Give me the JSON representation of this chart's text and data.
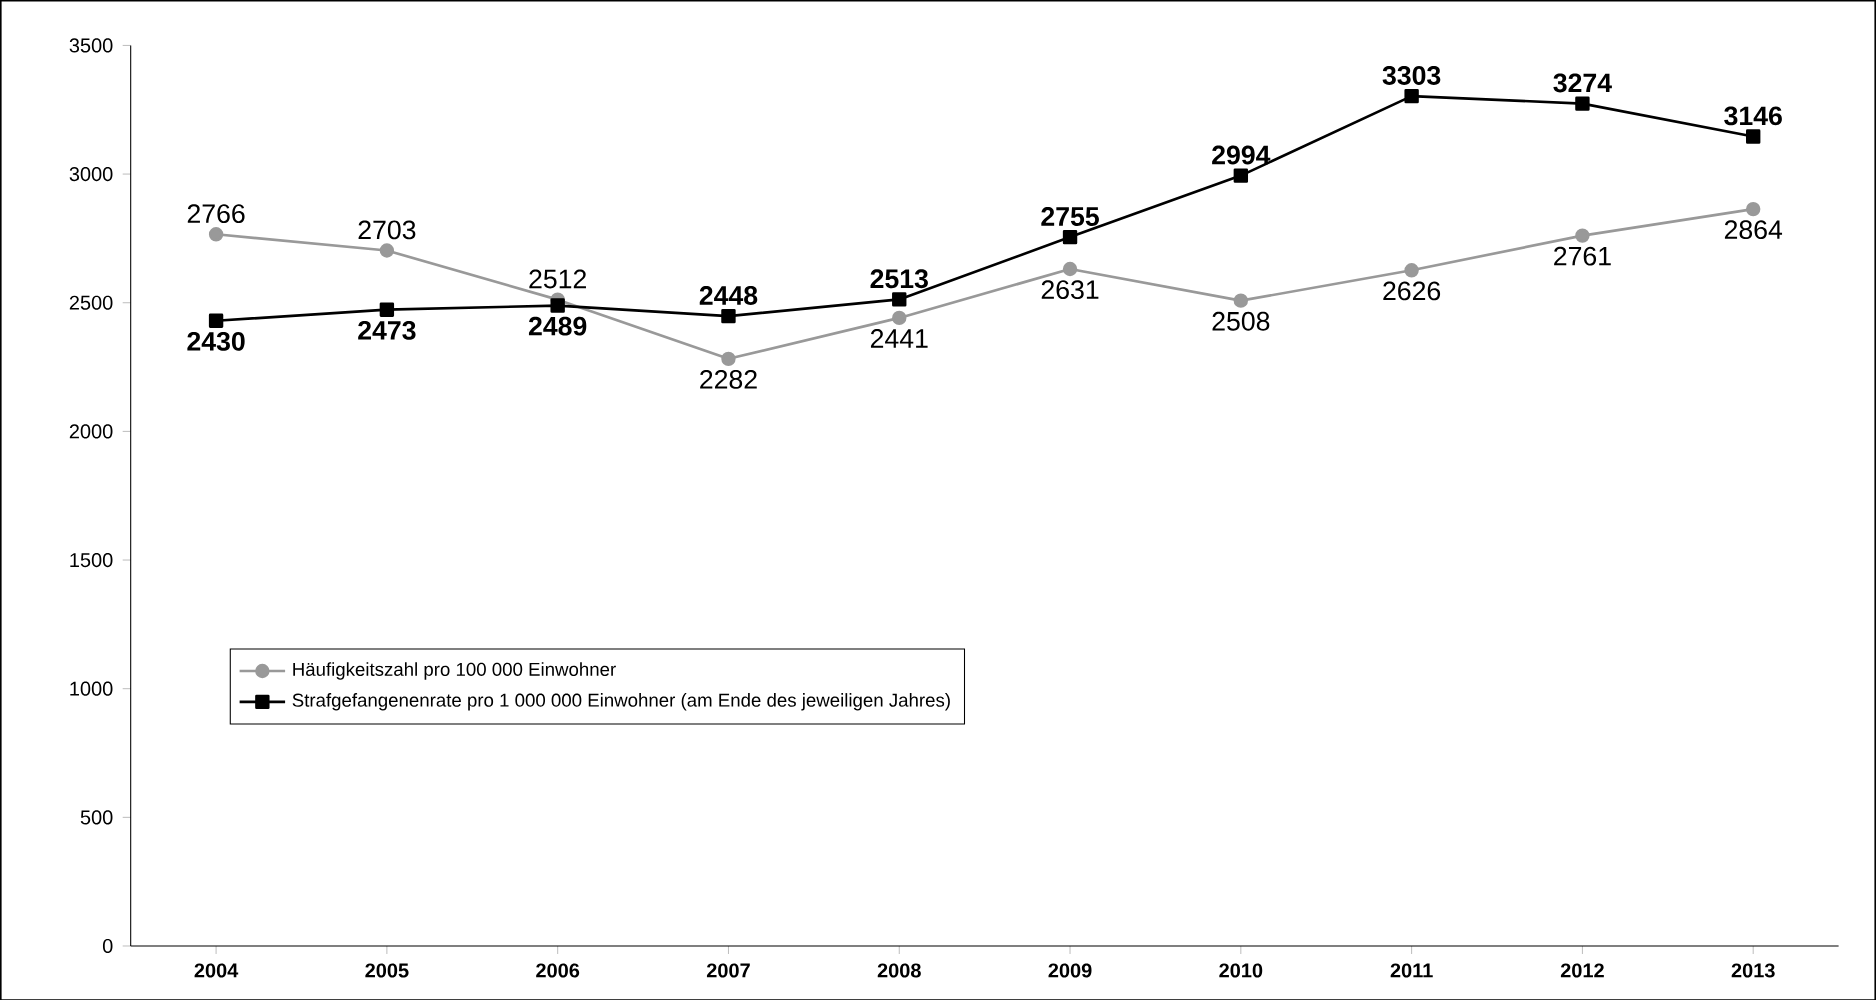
{
  "chart_data": {
    "type": "line",
    "categories": [
      "2004",
      "2005",
      "2006",
      "2007",
      "2008",
      "2009",
      "2010",
      "2011",
      "2012",
      "2013"
    ],
    "series": [
      {
        "name": "Häufigkeitszahl pro 100 000 Einwohner",
        "color": "#999999",
        "marker": "circle",
        "values": [
          2766,
          2703,
          2512,
          2282,
          2441,
          2631,
          2508,
          2626,
          2761,
          2864
        ]
      },
      {
        "name": "Strafgefangenenrate pro 1 000 000 Einwohner (am Ende des jeweiligen Jahres)",
        "color": "#000000",
        "marker": "square",
        "values": [
          2430,
          2473,
          2489,
          2448,
          2513,
          2755,
          2994,
          3303,
          3274,
          3146
        ]
      }
    ],
    "ylim": [
      0,
      3500
    ],
    "yticks": [
      0,
      500,
      1000,
      1500,
      2000,
      2500,
      3000,
      3500
    ],
    "grid": false,
    "legend": "bottom left",
    "data_labels": true,
    "line_style": "solid"
  }
}
